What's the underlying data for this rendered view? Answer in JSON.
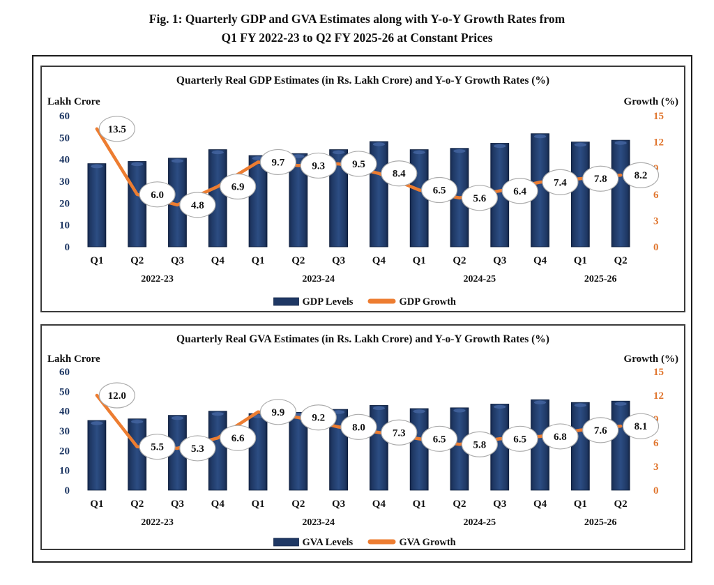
{
  "figure_title": {
    "line1": "Fig. 1: Quarterly GDP and GVA Estimates along with Y-o-Y Growth Rates from",
    "line2": "Q1 FY 2022-23 to Q2 FY 2025-26 at Constant Prices"
  },
  "colors": {
    "bar_fill": "#1F3864",
    "bar_edge": "#0E1E3C",
    "bar_mid_highlight": "#2C4D83",
    "bar_top_highlight": "#41629C",
    "line_color": "#ED7D31",
    "left_tick_color": "#1F3864",
    "right_tick_color": "#E0762F",
    "bubble_fill": "#FFFFFF",
    "bubble_border": "#ACACAC",
    "text_color": "#121212"
  },
  "chart_data": [
    {
      "type": "bar+line",
      "title": "Quarterly Real GDP Estimates (in Rs. Lakh Crore) and Y-o-Y Growth Rates (%)",
      "left_axis_label": "Lakh Crore",
      "right_axis_label": "Growth (%)",
      "left_ticks": [
        0,
        10,
        20,
        30,
        40,
        50,
        60
      ],
      "left_range": [
        0,
        60
      ],
      "right_ticks": [
        0,
        3,
        6,
        9,
        12,
        15
      ],
      "right_range": [
        0,
        15
      ],
      "categories": [
        "Q1",
        "Q2",
        "Q3",
        "Q4",
        "Q1",
        "Q2",
        "Q3",
        "Q4",
        "Q1",
        "Q2",
        "Q3",
        "Q4",
        "Q1",
        "Q2"
      ],
      "year_groups": [
        {
          "label": "2022-23",
          "start": 0,
          "end": 3
        },
        {
          "label": "2023-24",
          "start": 4,
          "end": 7
        },
        {
          "label": "2024-25",
          "start": 8,
          "end": 11
        },
        {
          "label": "2025-26",
          "start": 12,
          "end": 13
        }
      ],
      "series": [
        {
          "name": "GDP Levels",
          "kind": "bar",
          "axis": "left",
          "values": [
            38.1,
            39.1,
            40.6,
            44.5,
            41.8,
            42.7,
            44.5,
            48.2,
            44.5,
            45.1,
            47.4,
            51.8,
            48.0,
            48.8
          ]
        },
        {
          "name": "GDP Growth",
          "kind": "line",
          "axis": "right",
          "values": [
            13.5,
            6.0,
            4.8,
            6.9,
            9.7,
            9.3,
            9.5,
            8.4,
            6.5,
            5.6,
            6.4,
            7.4,
            7.8,
            8.2
          ],
          "point_labels": [
            "13.5",
            "6.0",
            "4.8",
            "6.9",
            "9.7",
            "9.3",
            "9.5",
            "8.4",
            "6.5",
            "5.6",
            "6.4",
            "7.4",
            "7.8",
            "8.2"
          ]
        }
      ],
      "legend_position": "bottom",
      "grid": false
    },
    {
      "type": "bar+line",
      "title": "Quarterly Real GVA Estimates (in Rs. Lakh Crore) and Y-o-Y Growth Rates (%)",
      "left_axis_label": "Lakh Crore",
      "right_axis_label": "Growth (%)",
      "left_ticks": [
        0,
        10,
        20,
        30,
        40,
        50,
        60
      ],
      "left_range": [
        0,
        60
      ],
      "right_ticks": [
        0,
        3,
        6,
        9,
        12,
        15
      ],
      "right_range": [
        0,
        15
      ],
      "categories": [
        "Q1",
        "Q2",
        "Q3",
        "Q4",
        "Q1",
        "Q2",
        "Q3",
        "Q4",
        "Q1",
        "Q2",
        "Q3",
        "Q4",
        "Q1",
        "Q2"
      ],
      "year_groups": [
        {
          "label": "2022-23",
          "start": 0,
          "end": 3
        },
        {
          "label": "2023-24",
          "start": 4,
          "end": 7
        },
        {
          "label": "2024-25",
          "start": 8,
          "end": 11
        },
        {
          "label": "2025-26",
          "start": 12,
          "end": 13
        }
      ],
      "series": [
        {
          "name": "GVA Levels",
          "kind": "bar",
          "axis": "left",
          "values": [
            35.3,
            36.1,
            37.9,
            40.0,
            38.8,
            39.4,
            40.9,
            42.9,
            41.3,
            41.7,
            43.6,
            45.8,
            44.4,
            45.1
          ]
        },
        {
          "name": "GVA Growth",
          "kind": "line",
          "axis": "right",
          "values": [
            12.0,
            5.5,
            5.3,
            6.6,
            9.9,
            9.2,
            8.0,
            7.3,
            6.5,
            5.8,
            6.5,
            6.8,
            7.6,
            8.1
          ],
          "point_labels": [
            "12.0",
            "5.5",
            "5.3",
            "6.6",
            "9.9",
            "9.2",
            "8.0",
            "7.3",
            "6.5",
            "5.8",
            "6.5",
            "6.8",
            "7.6",
            "8.1"
          ]
        }
      ],
      "legend_position": "bottom",
      "grid": false
    }
  ]
}
